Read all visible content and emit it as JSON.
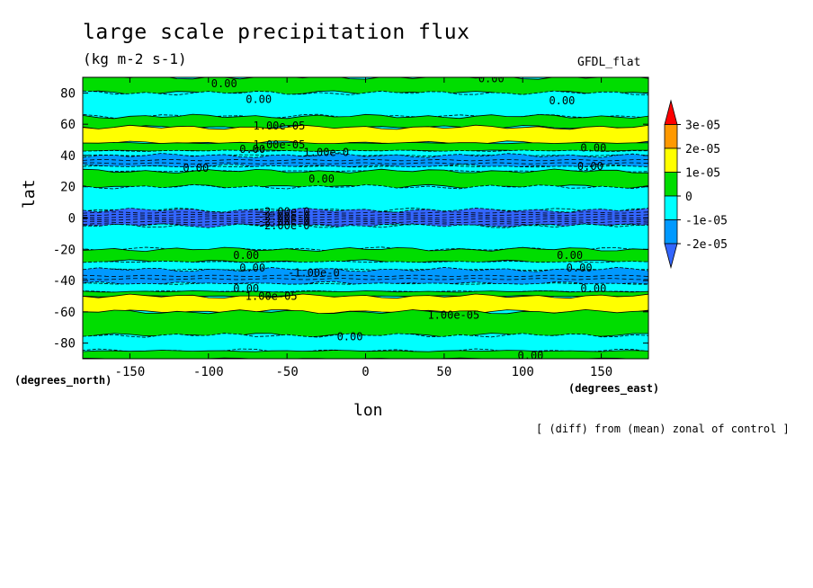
{
  "chart_data": {
    "type": "heatmap",
    "title": "large scale precipitation flux",
    "subtitle": "(kg m-2 s-1)",
    "model_label": "GFDL_flat",
    "xlabel": "lon",
    "ylabel": "lat",
    "x_units_label": "(degrees_east)",
    "y_units_label": "(degrees_north)",
    "footnote": "[ (diff) from (mean) zonal of control ]",
    "xlim": [
      -180,
      180
    ],
    "ylim": [
      -90,
      90
    ],
    "x_ticks": [
      -150,
      -100,
      -50,
      0,
      50,
      100,
      150
    ],
    "y_ticks": [
      -80,
      -60,
      -40,
      -20,
      0,
      20,
      40,
      60,
      80
    ],
    "colorbar": {
      "labels": [
        "3e-05",
        "2e-05",
        "1e-05",
        "0",
        "-1e-05",
        "-2e-05"
      ],
      "colors": [
        "#ff0000",
        "#ff9900",
        "#ffff00",
        "#00dd00",
        "#00ffff",
        "#0099ff",
        "#3366ff"
      ]
    },
    "latitude_bands": [
      {
        "lat_min": 80,
        "lat_max": 90,
        "level": "0 to 1e-05"
      },
      {
        "lat_min": 65,
        "lat_max": 80,
        "level": "-1e-05 to 0"
      },
      {
        "lat_min": 58,
        "lat_max": 65,
        "level": "0 to 1e-05"
      },
      {
        "lat_min": 48,
        "lat_max": 58,
        "level": "1e-05 to 2e-05"
      },
      {
        "lat_min": 43,
        "lat_max": 48,
        "level": "0 to 1e-05"
      },
      {
        "lat_min": 40,
        "lat_max": 43,
        "level": "-1e-05 to 0"
      },
      {
        "lat_min": 33,
        "lat_max": 40,
        "level": "-2e-05 to -1e-05"
      },
      {
        "lat_min": 30,
        "lat_max": 33,
        "level": "-1e-05 to 0"
      },
      {
        "lat_min": 20,
        "lat_max": 30,
        "level": "0 to 1e-05"
      },
      {
        "lat_min": 5,
        "lat_max": 20,
        "level": "-1e-05 to 0"
      },
      {
        "lat_min": -5,
        "lat_max": 5,
        "level": "< -2e-05"
      },
      {
        "lat_min": -20,
        "lat_max": -5,
        "level": "-1e-05 to 0"
      },
      {
        "lat_min": -28,
        "lat_max": -20,
        "level": "0 to 1e-05"
      },
      {
        "lat_min": -33,
        "lat_max": -28,
        "level": "-1e-05 to 0"
      },
      {
        "lat_min": -42,
        "lat_max": -33,
        "level": "-2e-05 to -1e-05"
      },
      {
        "lat_min": -47,
        "lat_max": -42,
        "level": "-1e-05 to 0"
      },
      {
        "lat_min": -50,
        "lat_max": -47,
        "level": "0 to 1e-05"
      },
      {
        "lat_min": -60,
        "lat_max": -50,
        "level": "1e-05 to 2e-05"
      },
      {
        "lat_min": -75,
        "lat_max": -60,
        "level": "0 to 1e-05"
      },
      {
        "lat_min": -85,
        "lat_max": -75,
        "level": "-1e-05 to 0"
      },
      {
        "lat_min": -90,
        "lat_max": -85,
        "level": "0 to 1e-05"
      }
    ],
    "contour_labels": [
      {
        "text": "0.00",
        "lon": -90,
        "lat": 86
      },
      {
        "text": "0.00",
        "lon": 80,
        "lat": 89
      },
      {
        "text": "0.00",
        "lon": -68,
        "lat": 76
      },
      {
        "text": "0.00",
        "lon": 125,
        "lat": 75
      },
      {
        "text": "1.00e-05",
        "lon": -55,
        "lat": 59
      },
      {
        "text": "1.00e-05",
        "lon": -55,
        "lat": 47
      },
      {
        "text": "0.00",
        "lon": -72,
        "lat": 44
      },
      {
        "text": "1.00e-0",
        "lon": -25,
        "lat": 42
      },
      {
        "text": "0.00",
        "lon": 145,
        "lat": 45
      },
      {
        "text": "0.00",
        "lon": 143,
        "lat": 33
      },
      {
        "text": "0.00",
        "lon": -108,
        "lat": 32
      },
      {
        "text": "0.00",
        "lon": -28,
        "lat": 25
      },
      {
        "text": "-2.00e-0",
        "lon": -52,
        "lat": 4
      },
      {
        "text": "-2.00e-0",
        "lon": -52,
        "lat": 1
      },
      {
        "text": "-2.00e-0",
        "lon": -52,
        "lat": -2
      },
      {
        "text": "-2.00e-0",
        "lon": -52,
        "lat": -5
      },
      {
        "text": "0.00",
        "lon": -76,
        "lat": -24
      },
      {
        "text": "0.00",
        "lon": 130,
        "lat": -24
      },
      {
        "text": "0.00",
        "lon": -72,
        "lat": -32
      },
      {
        "text": "0.00",
        "lon": 136,
        "lat": -32
      },
      {
        "text": "-1.00e-0",
        "lon": -33,
        "lat": -35
      },
      {
        "text": "0.00",
        "lon": -76,
        "lat": -45
      },
      {
        "text": "0.00",
        "lon": 145,
        "lat": -45
      },
      {
        "text": "1.00e-05",
        "lon": -60,
        "lat": -50
      },
      {
        "text": "1.00e-05",
        "lon": 56,
        "lat": -62
      },
      {
        "text": "0.00",
        "lon": -10,
        "lat": -76
      },
      {
        "text": "0.00",
        "lon": 105,
        "lat": -88
      }
    ]
  }
}
